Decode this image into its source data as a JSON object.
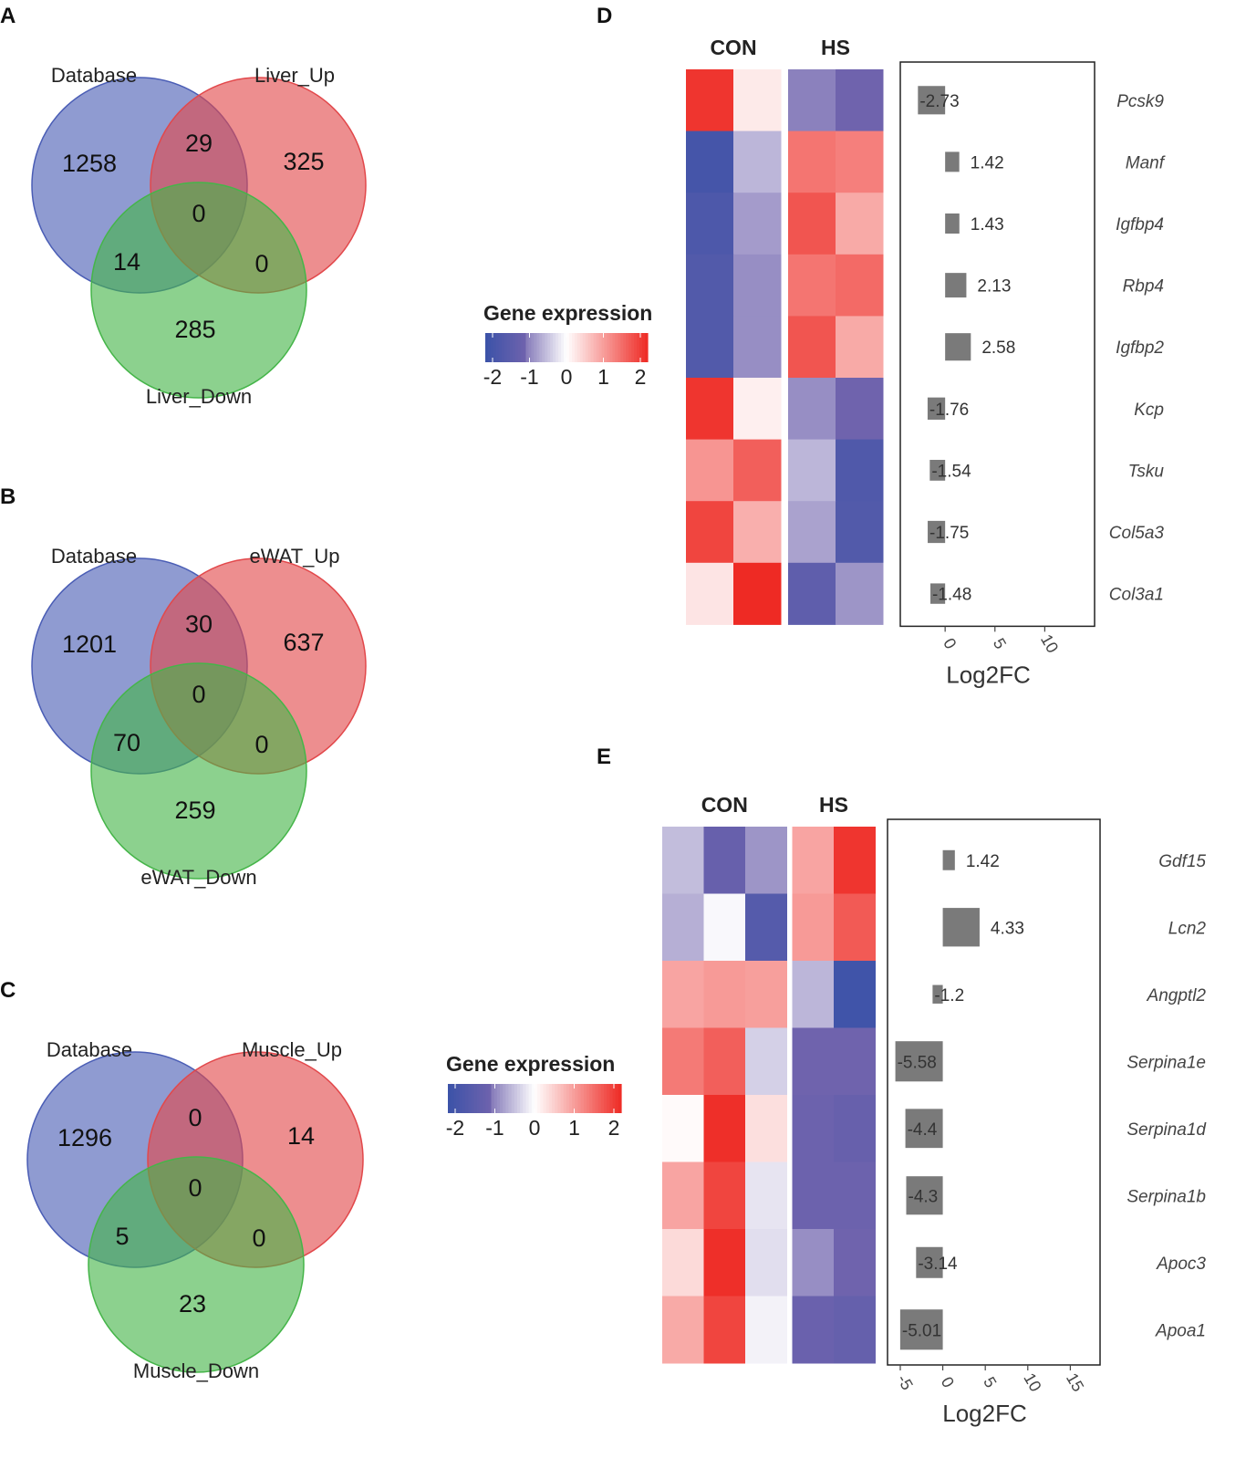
{
  "colors": {
    "low": "#3b52a8",
    "mid": "#ffffff",
    "high": "#ee2a24",
    "hs_low": "#6f63ad",
    "bar": "#7a7a7a",
    "venn_blue": "#4a5db5",
    "venn_red": "#e2484b",
    "venn_green": "#45b549"
  },
  "panels": [
    {
      "label": "A",
      "db_label": "Database",
      "up_label": "Liver_Up",
      "down_label": "Liver_Down",
      "counts": {
        "db_only": "1258",
        "db_up": "29",
        "up_only": "325",
        "center": "0",
        "db_down": "14",
        "up_down": "0",
        "down_only": "285"
      }
    },
    {
      "label": "B",
      "db_label": "Database",
      "up_label": "eWAT_Up",
      "down_label": "eWAT_Down",
      "counts": {
        "db_only": "1201",
        "db_up": "30",
        "up_only": "637",
        "center": "0",
        "db_down": "70",
        "up_down": "0",
        "down_only": "259"
      }
    },
    {
      "label": "C",
      "db_label": "Database",
      "up_label": "Muscle_Up",
      "down_label": "Muscle_Down",
      "counts": {
        "db_only": "1296",
        "db_up": "0",
        "up_only": "14",
        "center": "0",
        "db_down": "5",
        "up_down": "0",
        "down_only": "23"
      }
    }
  ],
  "chart_data": [
    {
      "type": "heatmap",
      "panel": "D",
      "groups": [
        "CON",
        "HS"
      ],
      "group_columns": [
        2,
        2
      ],
      "genes": [
        "Pcsk9",
        "Manf",
        "Igfbp4",
        "Rbp4",
        "Igfbp2",
        "Kcp",
        "Tsku",
        "Col5a3",
        "Col3a1"
      ],
      "values": [
        [
          1.9,
          0.2,
          -0.95,
          -1.0
        ],
        [
          -1.8,
          -0.55,
          1.3,
          1.2
        ],
        [
          -1.65,
          -0.75,
          1.6,
          0.8
        ],
        [
          -1.55,
          -0.85,
          1.3,
          1.4
        ],
        [
          -1.55,
          -0.85,
          1.6,
          0.8
        ],
        [
          1.9,
          0.15,
          -0.85,
          -1.0
        ],
        [
          1.0,
          1.5,
          -0.55,
          -1.6
        ],
        [
          1.75,
          0.75,
          -0.7,
          -1.55
        ],
        [
          0.25,
          2.0,
          -1.3,
          -0.8
        ]
      ],
      "legend": {
        "title": "Gene expression",
        "ticks": [
          "-2",
          "-1",
          "0",
          "1",
          "2"
        ],
        "range": [
          -2,
          2
        ]
      },
      "log2fc": {
        "values": [
          -2.73,
          1.42,
          1.43,
          2.13,
          2.58,
          -1.76,
          -1.54,
          -1.75,
          -1.48
        ],
        "labels": [
          "-2.73",
          "1.42",
          "1.43",
          "2.13",
          "2.58",
          "-1.76",
          "-1.54",
          "-1.75",
          "-1.48"
        ],
        "xlim": [
          -4.5,
          15
        ],
        "ticks": [
          "0",
          "5",
          "10"
        ],
        "xlabel": "Log2FC"
      }
    },
    {
      "type": "heatmap",
      "panel": "E",
      "groups": [
        "CON",
        "HS"
      ],
      "group_columns": [
        3,
        2
      ],
      "genes": [
        "Gdf15",
        "Lcn2",
        "Angptl2",
        "Serpina1e",
        "Serpina1d",
        "Serpina1b",
        "Apoc3",
        "Apoa1"
      ],
      "values": [
        [
          -0.5,
          -1.15,
          -0.8,
          0.85,
          1.9
        ],
        [
          -0.6,
          -0.05,
          -1.5,
          0.95,
          1.55
        ],
        [
          0.85,
          0.95,
          0.9,
          -0.55,
          -1.9
        ],
        [
          1.25,
          1.5,
          -0.35,
          -1.0,
          -1.0
        ],
        [
          0.05,
          1.95,
          0.3,
          -1.05,
          -1.15
        ],
        [
          0.85,
          1.75,
          -0.2,
          -1.05,
          -1.05
        ],
        [
          0.35,
          1.95,
          -0.25,
          -0.85,
          -1.0
        ],
        [
          0.8,
          1.75,
          -0.1,
          -1.1,
          -1.2
        ]
      ],
      "legend": {
        "title": "Gene expression",
        "ticks": [
          "-2",
          "-1",
          "0",
          "1",
          "2"
        ],
        "range": [
          -2,
          2
        ]
      },
      "log2fc": {
        "values": [
          1.42,
          4.33,
          -1.2,
          -5.58,
          -4.4,
          -4.3,
          -3.14,
          -5.01
        ],
        "labels": [
          "1.42",
          "4.33",
          "-1.2",
          "-5.58",
          "-4.4",
          "-4.3",
          "-3.14",
          "-5.01"
        ],
        "xlim": [
          -6.5,
          18.5
        ],
        "ticks": [
          "-5",
          "0",
          "5",
          "10",
          "15"
        ],
        "xlabel": "Log2FC"
      }
    }
  ]
}
